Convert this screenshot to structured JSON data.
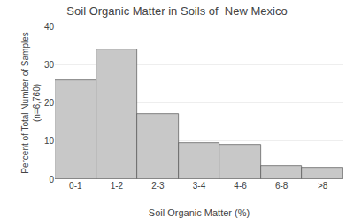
{
  "chart_data": {
    "type": "bar",
    "title": "Soil Organic Matter in Soils of  New Mexico",
    "xlabel": "Soil Organic Matter (%)",
    "ylabel": "Percent of Total Number of Samples\n(n=6,760)",
    "categories": [
      "0-1",
      "1-2",
      "2-3",
      "3-4",
      "4-6",
      "6-8",
      ">8"
    ],
    "values": [
      26.0,
      34.0,
      17.0,
      9.5,
      9.0,
      3.5,
      3.0
    ],
    "color": "#c8c8c8",
    "ylim": [
      0,
      40
    ],
    "yticks": [
      0,
      10,
      20,
      30,
      40
    ],
    "grid": true
  }
}
